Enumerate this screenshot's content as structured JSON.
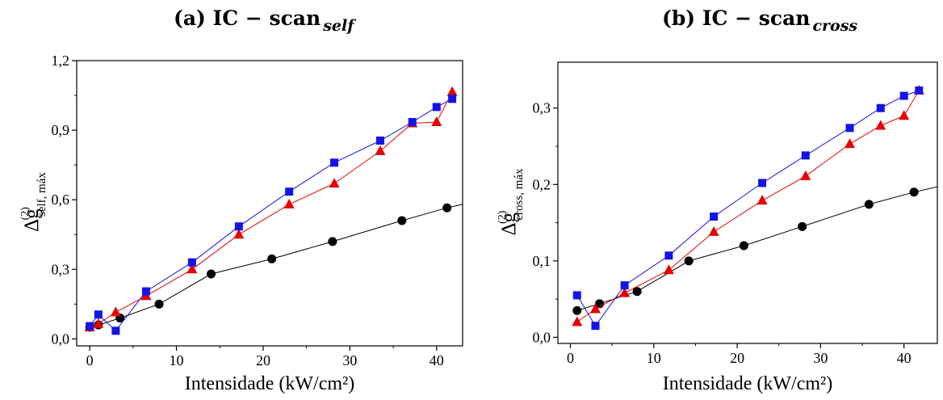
{
  "titles": [
    {
      "main": "(a)  IC − scan",
      "sub": "self"
    },
    {
      "main": "(b) IC − scan",
      "sub": "cross"
    }
  ],
  "colors": {
    "black": "#000000",
    "red": "#e60000",
    "blue": "#1414e6"
  },
  "chart_data": [
    {
      "type": "scatter",
      "title": "(a)  IC − scan self",
      "xlabel": "Intensidade (kW/cm²)",
      "ylabel": "Δg(2) self, máx",
      "ylabel_parts": {
        "base": "Δg",
        "sup": "(2)",
        "sub": "self, máx"
      },
      "xlim": [
        -1.5,
        43
      ],
      "ylim": [
        -0.03,
        1.2
      ],
      "xticks": [
        0,
        10,
        20,
        30,
        40
      ],
      "xtick_labels": [
        "0",
        "10",
        "20",
        "30",
        "40"
      ],
      "yticks": [
        0,
        0.3,
        0.6,
        0.9,
        1.2
      ],
      "ytick_labels": [
        "0,0",
        "0,3",
        "0,6",
        "0,9",
        "1,2"
      ],
      "series": [
        {
          "color": "black",
          "marker": "circle",
          "x": [
            0,
            1,
            3.5,
            8,
            14,
            21,
            28,
            36,
            41.2,
            43
          ],
          "y": [
            0.05,
            0.06,
            0.09,
            0.15,
            0.28,
            0.345,
            0.42,
            0.51,
            0.565,
            0.58
          ],
          "markers": [
            true,
            true,
            true,
            true,
            true,
            true,
            true,
            true,
            true,
            false
          ]
        },
        {
          "color": "red",
          "marker": "triangle",
          "x": [
            0,
            1,
            3,
            6.5,
            11.8,
            17.2,
            23,
            28.2,
            33.5,
            37.2,
            40,
            41.8
          ],
          "y": [
            0.05,
            0.065,
            0.115,
            0.185,
            0.3,
            0.45,
            0.58,
            0.67,
            0.81,
            0.93,
            0.935,
            1.065
          ]
        },
        {
          "color": "blue",
          "marker": "square",
          "x": [
            0,
            1,
            3,
            6.5,
            11.8,
            17.2,
            23,
            28.2,
            33.5,
            37.2,
            40,
            41.8
          ],
          "y": [
            0.055,
            0.105,
            0.035,
            0.205,
            0.33,
            0.485,
            0.635,
            0.76,
            0.855,
            0.935,
            1.0,
            1.035
          ]
        }
      ]
    },
    {
      "type": "scatter",
      "title": "(b) IC − scan cross",
      "xlabel": "Intensidade (kW/cm²)",
      "ylabel": "Δg(2) cross, máx",
      "ylabel_parts": {
        "base": "Δg",
        "sup": "(2)",
        "sub": "cross, máx"
      },
      "xlim": [
        -1.5,
        44
      ],
      "ylim": [
        -0.008,
        0.36
      ],
      "xticks": [
        0,
        10,
        20,
        30,
        40
      ],
      "xtick_labels": [
        "0",
        "10",
        "20",
        "30",
        "40"
      ],
      "yticks": [
        0,
        0.1,
        0.2,
        0.3
      ],
      "ytick_labels": [
        "0,0",
        "0,1",
        "0,2",
        "0,3"
      ],
      "series": [
        {
          "color": "black",
          "marker": "circle",
          "x": [
            0.8,
            3.5,
            8,
            14.2,
            20.8,
            27.8,
            35.8,
            41.2,
            44
          ],
          "y": [
            0.035,
            0.044,
            0.06,
            0.1,
            0.12,
            0.145,
            0.174,
            0.19,
            0.197
          ],
          "markers": [
            true,
            true,
            true,
            true,
            true,
            true,
            true,
            true,
            false
          ]
        },
        {
          "color": "red",
          "marker": "triangle",
          "x": [
            0.8,
            3,
            6.5,
            11.8,
            17.2,
            23,
            28.2,
            33.5,
            37.2,
            40,
            41.8
          ],
          "y": [
            0.02,
            0.037,
            0.058,
            0.088,
            0.138,
            0.179,
            0.211,
            0.253,
            0.277,
            0.29,
            0.323
          ]
        },
        {
          "color": "blue",
          "marker": "square",
          "x": [
            0.8,
            3,
            6.5,
            11.8,
            17.2,
            23,
            28.2,
            33.5,
            37.2,
            40,
            41.8
          ],
          "y": [
            0.055,
            0.015,
            0.068,
            0.107,
            0.158,
            0.202,
            0.238,
            0.274,
            0.3,
            0.316,
            0.323
          ]
        }
      ]
    }
  ]
}
